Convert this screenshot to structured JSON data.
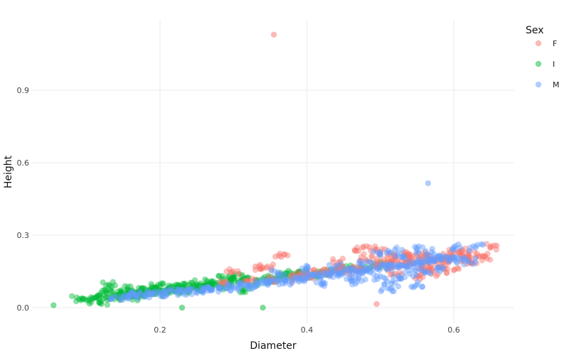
{
  "chart_data": {
    "type": "scatter",
    "title": "",
    "xlabel": "Diameter",
    "ylabel": "Height",
    "xlim": [
      0.035,
      0.68
    ],
    "ylim": [
      -0.065,
      1.19
    ],
    "xticks": [
      0.2,
      0.4,
      0.6
    ],
    "xtick_labels": [
      "0.2",
      "0.4",
      "0.6"
    ],
    "yticks": [
      0.0,
      0.3,
      0.6,
      0.9
    ],
    "ytick_labels": [
      "0.0",
      "0.3",
      "0.6",
      "0.9"
    ],
    "grid": true,
    "legend": {
      "title": "Sex",
      "position": "right-top"
    },
    "series": [
      {
        "name": "F",
        "color": "#F8766D",
        "points": [
          [
            0.355,
            1.13
          ],
          [
            0.495,
            0.015
          ],
          [
            0.65,
            0.25
          ],
          [
            0.63,
            0.21
          ],
          [
            0.62,
            0.22
          ],
          [
            0.61,
            0.235
          ],
          [
            0.6,
            0.225
          ],
          [
            0.595,
            0.21
          ],
          [
            0.585,
            0.205
          ],
          [
            0.575,
            0.2
          ],
          [
            0.565,
            0.19
          ],
          [
            0.555,
            0.2
          ],
          [
            0.545,
            0.185
          ],
          [
            0.535,
            0.19
          ],
          [
            0.525,
            0.18
          ],
          [
            0.515,
            0.19
          ],
          [
            0.505,
            0.175
          ],
          [
            0.495,
            0.18
          ],
          [
            0.485,
            0.25
          ],
          [
            0.47,
            0.235
          ],
          [
            0.475,
            0.165
          ],
          [
            0.46,
            0.16
          ],
          [
            0.45,
            0.15
          ],
          [
            0.44,
            0.16
          ],
          [
            0.43,
            0.145
          ],
          [
            0.42,
            0.15
          ],
          [
            0.41,
            0.14
          ],
          [
            0.4,
            0.13
          ],
          [
            0.39,
            0.135
          ],
          [
            0.38,
            0.12
          ],
          [
            0.365,
            0.21
          ],
          [
            0.355,
            0.12
          ],
          [
            0.345,
            0.165
          ],
          [
            0.33,
            0.17
          ],
          [
            0.32,
            0.11
          ],
          [
            0.3,
            0.15
          ],
          [
            0.29,
            0.1
          ],
          [
            0.52,
            0.21
          ],
          [
            0.54,
            0.22
          ],
          [
            0.5,
            0.23
          ],
          [
            0.56,
            0.215
          ],
          [
            0.58,
            0.17
          ],
          [
            0.6,
            0.155
          ],
          [
            0.59,
            0.2
          ],
          [
            0.57,
            0.14
          ],
          [
            0.55,
            0.13
          ],
          [
            0.535,
            0.22
          ],
          [
            0.48,
            0.2
          ],
          [
            0.445,
            0.19
          ],
          [
            0.52,
            0.14
          ],
          [
            0.565,
            0.165
          ],
          [
            0.505,
            0.2
          ],
          [
            0.62,
            0.2
          ],
          [
            0.625,
            0.19
          ],
          [
            0.64,
            0.21
          ],
          [
            0.56,
            0.155
          ]
        ]
      },
      {
        "name": "I",
        "color": "#00BA38",
        "points": [
          [
            0.055,
            0.01
          ],
          [
            0.23,
            0.0
          ],
          [
            0.34,
            0.0
          ],
          [
            0.09,
            0.035
          ],
          [
            0.1,
            0.03
          ],
          [
            0.11,
            0.04
          ],
          [
            0.115,
            0.05
          ],
          [
            0.12,
            0.025
          ],
          [
            0.125,
            0.07
          ],
          [
            0.13,
            0.095
          ],
          [
            0.135,
            0.045
          ],
          [
            0.14,
            0.05
          ],
          [
            0.145,
            0.055
          ],
          [
            0.15,
            0.04
          ],
          [
            0.155,
            0.06
          ],
          [
            0.16,
            0.05
          ],
          [
            0.165,
            0.065
          ],
          [
            0.17,
            0.055
          ],
          [
            0.175,
            0.08
          ],
          [
            0.18,
            0.06
          ],
          [
            0.185,
            0.07
          ],
          [
            0.19,
            0.065
          ],
          [
            0.195,
            0.085
          ],
          [
            0.2,
            0.07
          ],
          [
            0.205,
            0.06
          ],
          [
            0.21,
            0.075
          ],
          [
            0.215,
            0.08
          ],
          [
            0.22,
            0.07
          ],
          [
            0.225,
            0.09
          ],
          [
            0.23,
            0.08
          ],
          [
            0.235,
            0.075
          ],
          [
            0.24,
            0.095
          ],
          [
            0.245,
            0.085
          ],
          [
            0.25,
            0.08
          ],
          [
            0.255,
            0.1
          ],
          [
            0.26,
            0.09
          ],
          [
            0.265,
            0.085
          ],
          [
            0.27,
            0.11
          ],
          [
            0.275,
            0.095
          ],
          [
            0.28,
            0.09
          ],
          [
            0.285,
            0.12
          ],
          [
            0.29,
            0.1
          ],
          [
            0.295,
            0.11
          ],
          [
            0.3,
            0.13
          ],
          [
            0.31,
            0.11
          ],
          [
            0.315,
            0.075
          ],
          [
            0.32,
            0.125
          ],
          [
            0.33,
            0.105
          ],
          [
            0.34,
            0.12
          ],
          [
            0.35,
            0.115
          ],
          [
            0.36,
            0.13
          ],
          [
            0.37,
            0.14
          ],
          [
            0.38,
            0.13
          ],
          [
            0.39,
            0.145
          ],
          [
            0.4,
            0.14
          ],
          [
            0.41,
            0.135
          ],
          [
            0.42,
            0.15
          ],
          [
            0.44,
            0.155
          ],
          [
            0.46,
            0.16
          ],
          [
            0.48,
            0.17
          ],
          [
            0.5,
            0.18
          ],
          [
            0.17,
            0.045
          ],
          [
            0.2,
            0.09
          ],
          [
            0.155,
            0.075
          ]
        ]
      },
      {
        "name": "M",
        "color": "#619CFF",
        "points": [
          [
            0.565,
            0.515
          ],
          [
            0.63,
            0.25
          ],
          [
            0.62,
            0.19
          ],
          [
            0.61,
            0.2
          ],
          [
            0.6,
            0.205
          ],
          [
            0.59,
            0.21
          ],
          [
            0.58,
            0.2
          ],
          [
            0.57,
            0.195
          ],
          [
            0.56,
            0.19
          ],
          [
            0.55,
            0.185
          ],
          [
            0.54,
            0.18
          ],
          [
            0.53,
            0.175
          ],
          [
            0.52,
            0.17
          ],
          [
            0.51,
            0.17
          ],
          [
            0.5,
            0.165
          ],
          [
            0.49,
            0.16
          ],
          [
            0.48,
            0.155
          ],
          [
            0.47,
            0.15
          ],
          [
            0.46,
            0.15
          ],
          [
            0.45,
            0.145
          ],
          [
            0.44,
            0.14
          ],
          [
            0.43,
            0.135
          ],
          [
            0.42,
            0.13
          ],
          [
            0.41,
            0.13
          ],
          [
            0.4,
            0.125
          ],
          [
            0.39,
            0.12
          ],
          [
            0.38,
            0.115
          ],
          [
            0.37,
            0.11
          ],
          [
            0.36,
            0.11
          ],
          [
            0.35,
            0.105
          ],
          [
            0.34,
            0.1
          ],
          [
            0.33,
            0.095
          ],
          [
            0.32,
            0.09
          ],
          [
            0.31,
            0.09
          ],
          [
            0.3,
            0.085
          ],
          [
            0.29,
            0.08
          ],
          [
            0.28,
            0.08
          ],
          [
            0.27,
            0.075
          ],
          [
            0.26,
            0.075
          ],
          [
            0.25,
            0.07
          ],
          [
            0.24,
            0.07
          ],
          [
            0.23,
            0.065
          ],
          [
            0.22,
            0.065
          ],
          [
            0.21,
            0.06
          ],
          [
            0.2,
            0.06
          ],
          [
            0.19,
            0.055
          ],
          [
            0.18,
            0.055
          ],
          [
            0.17,
            0.05
          ],
          [
            0.16,
            0.05
          ],
          [
            0.15,
            0.045
          ],
          [
            0.14,
            0.045
          ],
          [
            0.52,
            0.24
          ],
          [
            0.5,
            0.23
          ],
          [
            0.55,
            0.24
          ],
          [
            0.57,
            0.23
          ],
          [
            0.51,
            0.08
          ],
          [
            0.55,
            0.095
          ],
          [
            0.515,
            0.1
          ],
          [
            0.525,
            0.12
          ],
          [
            0.46,
            0.11
          ],
          [
            0.6,
            0.25
          ],
          [
            0.585,
            0.16
          ],
          [
            0.54,
            0.14
          ],
          [
            0.48,
            0.19
          ],
          [
            0.44,
            0.17
          ],
          [
            0.42,
            0.1
          ],
          [
            0.5,
            0.13
          ],
          [
            0.56,
            0.15
          ],
          [
            0.53,
            0.21
          ],
          [
            0.47,
            0.12
          ],
          [
            0.4,
            0.16
          ],
          [
            0.36,
            0.14
          ]
        ]
      }
    ]
  },
  "legend": {
    "title": "Sex",
    "items": [
      {
        "label": "F",
        "color": "#F8766D"
      },
      {
        "label": "I",
        "color": "#00BA38"
      },
      {
        "label": "M",
        "color": "#619CFF"
      }
    ]
  }
}
